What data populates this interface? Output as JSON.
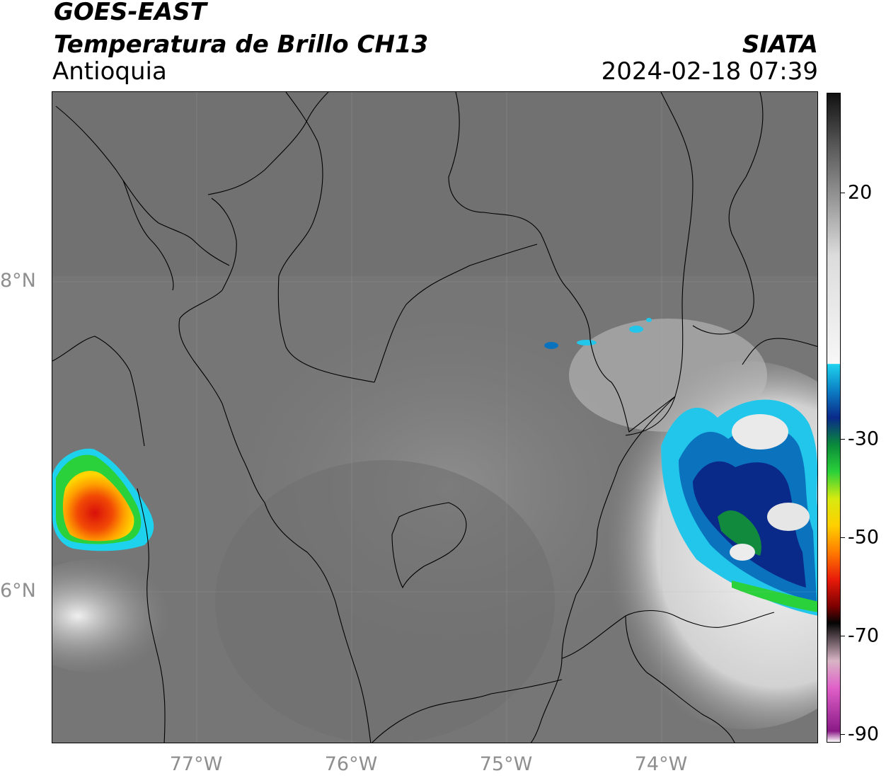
{
  "header": {
    "satellite": "GOES-EAST",
    "product": "Temperatura de Brillo CH13",
    "region": "Antioquia",
    "agency": "SIATA",
    "timestamp": "2024-02-18 07:39"
  },
  "map": {
    "lat_labels": [
      "8°N",
      "6°N"
    ],
    "lon_labels": [
      "77°W",
      "76°W",
      "75°W",
      "74°W"
    ]
  },
  "colorbar": {
    "ticks": [
      "20",
      "-30",
      "-50",
      "-70",
      "-90"
    ],
    "scale_stops": [
      {
        "t": 30,
        "color": "#111111"
      },
      {
        "t": 20,
        "color": "#5a5a5a"
      },
      {
        "t": 10,
        "color": "#9a9a9a"
      },
      {
        "t": 0,
        "color": "#dcdcdc"
      },
      {
        "t": -20,
        "color": "#f7f7f7"
      },
      {
        "t": -20.1,
        "color": "#1ed2ee"
      },
      {
        "t": -25,
        "color": "#0c7fc4"
      },
      {
        "t": -30,
        "color": "#0a2a8a"
      },
      {
        "t": -35,
        "color": "#0a8a3a"
      },
      {
        "t": -40,
        "color": "#2ad13a"
      },
      {
        "t": -45,
        "color": "#d7ea10"
      },
      {
        "t": -50,
        "color": "#ffcf00"
      },
      {
        "t": -55,
        "color": "#ff7a00"
      },
      {
        "t": -60,
        "color": "#e81a0a"
      },
      {
        "t": -65,
        "color": "#7a0000"
      },
      {
        "t": -68,
        "color": "#050505"
      },
      {
        "t": -75,
        "color": "#d8b4c4"
      },
      {
        "t": -80,
        "color": "#e060c8"
      },
      {
        "t": -88,
        "color": "#8a1a86"
      },
      {
        "t": -90,
        "color": "#ffffff"
      }
    ]
  }
}
